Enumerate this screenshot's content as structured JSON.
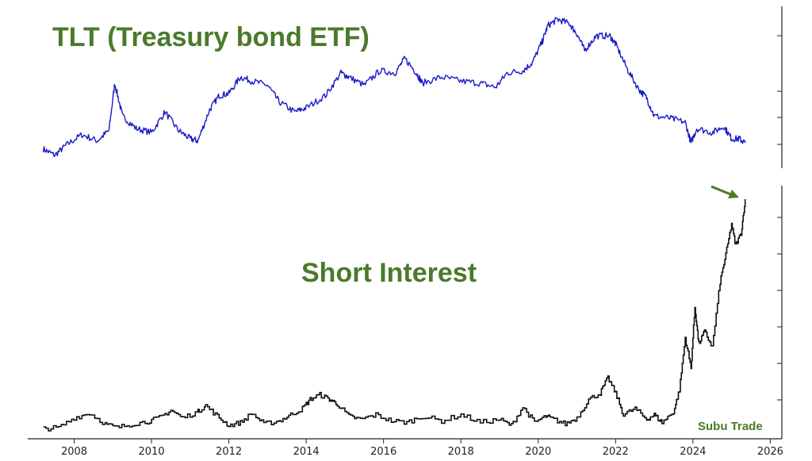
{
  "chart_data": [
    {
      "type": "line",
      "title": "TLT (Treasury bond ETF)",
      "series": [
        {
          "color": "#1a1ac8",
          "x": [
            2007.2,
            2007.5,
            2007.8,
            2008.2,
            2008.6,
            2008.9,
            2009.05,
            2009.25,
            2009.6,
            2010.0,
            2010.35,
            2010.7,
            2011.0,
            2011.2,
            2011.5,
            2011.75,
            2012.0,
            2012.3,
            2012.6,
            2013.0,
            2013.3,
            2013.7,
            2014.0,
            2014.5,
            2014.9,
            2015.1,
            2015.5,
            2015.9,
            2016.3,
            2016.55,
            2016.85,
            2017.0,
            2017.5,
            2018.0,
            2018.5,
            2018.9,
            2019.2,
            2019.6,
            2019.85,
            2020.1,
            2020.25,
            2020.5,
            2020.8,
            2021.0,
            2021.2,
            2021.5,
            2021.85,
            2022.0,
            2022.3,
            2022.6,
            2022.8,
            2023.0,
            2023.4,
            2023.8,
            2023.95,
            2024.1,
            2024.5,
            2024.8,
            2025.0,
            2025.2,
            2025.35
          ],
          "values": [
            89,
            86,
            91,
            96,
            93,
            98,
            121,
            105,
            99,
            97,
            107,
            98,
            94,
            93,
            108,
            115,
            116,
            124,
            122,
            120,
            112,
            107,
            109,
            115,
            126,
            124,
            120,
            127,
            126,
            133,
            126,
            121,
            124,
            122,
            121,
            119,
            126,
            127,
            131,
            141,
            149,
            152,
            150,
            145,
            137,
            144,
            144,
            140,
            128,
            118,
            114,
            105,
            104,
            102,
            92,
            99,
            97,
            100,
            94,
            94,
            92
          ]
        }
      ],
      "xlim": [
        2006.8,
        2026.3
      ],
      "ylim": [
        82,
        156
      ]
    },
    {
      "type": "line",
      "title": "Short Interest",
      "series": [
        {
          "color": "#111111",
          "x": [
            2007.2,
            2007.6,
            2008.0,
            2008.4,
            2008.8,
            2009.1,
            2009.5,
            2009.9,
            2010.2,
            2010.5,
            2010.8,
            2011.2,
            2011.4,
            2011.7,
            2012.0,
            2012.3,
            2012.6,
            2012.9,
            2013.3,
            2013.6,
            2013.9,
            2014.1,
            2014.35,
            2014.6,
            2014.8,
            2015.1,
            2015.4,
            2015.8,
            2016.2,
            2016.6,
            2017.0,
            2017.5,
            2018.0,
            2018.5,
            2019.0,
            2019.3,
            2019.6,
            2019.9,
            2020.2,
            2020.4,
            2020.7,
            2021.0,
            2021.3,
            2021.6,
            2021.8,
            2022.0,
            2022.2,
            2022.5,
            2022.8,
            2023.0,
            2023.2,
            2023.5,
            2023.65,
            2023.8,
            2023.95,
            2024.05,
            2024.15,
            2024.3,
            2024.5,
            2024.7,
            2024.85,
            2025.0,
            2025.1,
            2025.25,
            2025.35
          ],
          "values": [
            0.5,
            0.8,
            4.0,
            5.5,
            2.0,
            0.8,
            2.0,
            2.8,
            4.0,
            6.5,
            4.0,
            6.0,
            8.0,
            4.5,
            1.5,
            2.5,
            5.5,
            2.0,
            3.0,
            5.0,
            7.0,
            10.0,
            11.5,
            10.0,
            8.5,
            4.5,
            3.5,
            5.0,
            3.0,
            2.5,
            4.5,
            3.0,
            5.0,
            2.5,
            3.5,
            1.5,
            7.5,
            2.5,
            4.5,
            3.5,
            2.0,
            4.0,
            10.0,
            12.0,
            17.0,
            12.0,
            5.0,
            7.0,
            3.5,
            5.0,
            2.5,
            6.0,
            13.0,
            30.0,
            20.0,
            40.0,
            28.0,
            32.0,
            27.0,
            48.0,
            57.0,
            67.0,
            60.0,
            64.0,
            75.0
          ]
        }
      ],
      "xlim": [
        2006.8,
        2026.3
      ],
      "ylim": [
        -1,
        76
      ]
    }
  ],
  "x_axis": {
    "ticks": [
      2008,
      2010,
      2012,
      2014,
      2016,
      2018,
      2020,
      2022,
      2024,
      2026
    ],
    "tick_labels": [
      "2008",
      "2010",
      "2012",
      "2014",
      "2016",
      "2018",
      "2020",
      "2022",
      "2024",
      "2026"
    ]
  },
  "annotation": {
    "arrow_color": "#4a7a2a",
    "arrow_points_to": "latest short interest value (2025)"
  },
  "watermark": "Subu Trade"
}
